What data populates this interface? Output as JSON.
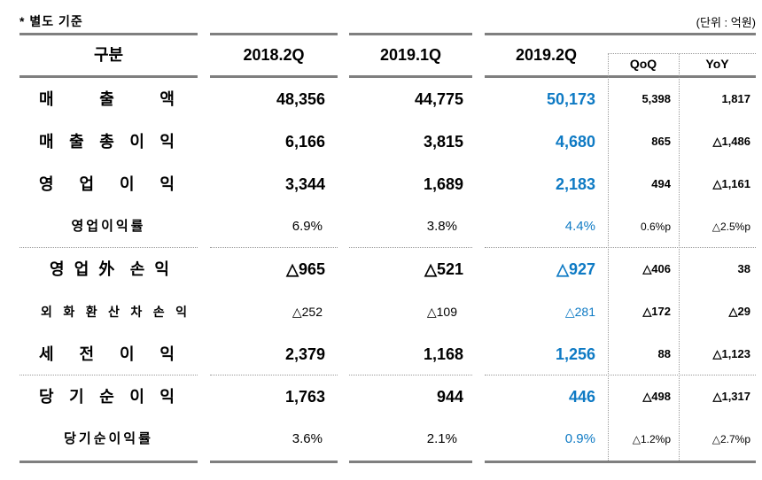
{
  "meta": {
    "note": "* 별도 기준",
    "unit": "(단위 : 억원)"
  },
  "colors": {
    "accent_blue": "#0e7ac4",
    "line_gray": "#7f7f7f",
    "dotted_gray": "#9a9a9a"
  },
  "table": {
    "headers": {
      "label": "구분",
      "c1": "2018.2Q",
      "c2": "2019.1Q",
      "c3": "2019.2Q",
      "qoq": "QoQ",
      "yoy": "YoY"
    },
    "rows": [
      {
        "label": "매 출 액",
        "c1": "48,356",
        "c2": "44,775",
        "c3": "50,173",
        "qoq": "5,398",
        "yoy": "1,817"
      },
      {
        "label": "매 출 총 이 익",
        "c1": "6,166",
        "c2": "3,815",
        "c3": "4,680",
        "qoq": "865",
        "yoy": "△1,486"
      },
      {
        "label": "영 업 이 익",
        "c1": "3,344",
        "c2": "1,689",
        "c3": "2,183",
        "qoq": "494",
        "yoy": "△1,161"
      },
      {
        "label": "영업이익률",
        "c1": "6.9%",
        "c2": "3.8%",
        "c3": "4.4%",
        "qoq": "0.6%p",
        "yoy": "△2.5%p"
      },
      {
        "label": "영 업 外 손 익",
        "c1": "△965",
        "c2": "△521",
        "c3": "△927",
        "qoq": "△406",
        "yoy": "38"
      },
      {
        "label": "외 화 환 산 차 손 익",
        "c1": "△252",
        "c2": "△109",
        "c3": "△281",
        "qoq": "△172",
        "yoy": "△29"
      },
      {
        "label": "세 전 이 익",
        "c1": "2,379",
        "c2": "1,168",
        "c3": "1,256",
        "qoq": "88",
        "yoy": "△1,123"
      },
      {
        "label": "당 기 순 이 익",
        "c1": "1,763",
        "c2": "944",
        "c3": "446",
        "qoq": "△498",
        "yoy": "△1,317"
      },
      {
        "label": "당기순이익률",
        "c1": "3.6%",
        "c2": "2.1%",
        "c3": "0.9%",
        "qoq": "△1.2%p",
        "yoy": "△2.7%p"
      }
    ]
  }
}
